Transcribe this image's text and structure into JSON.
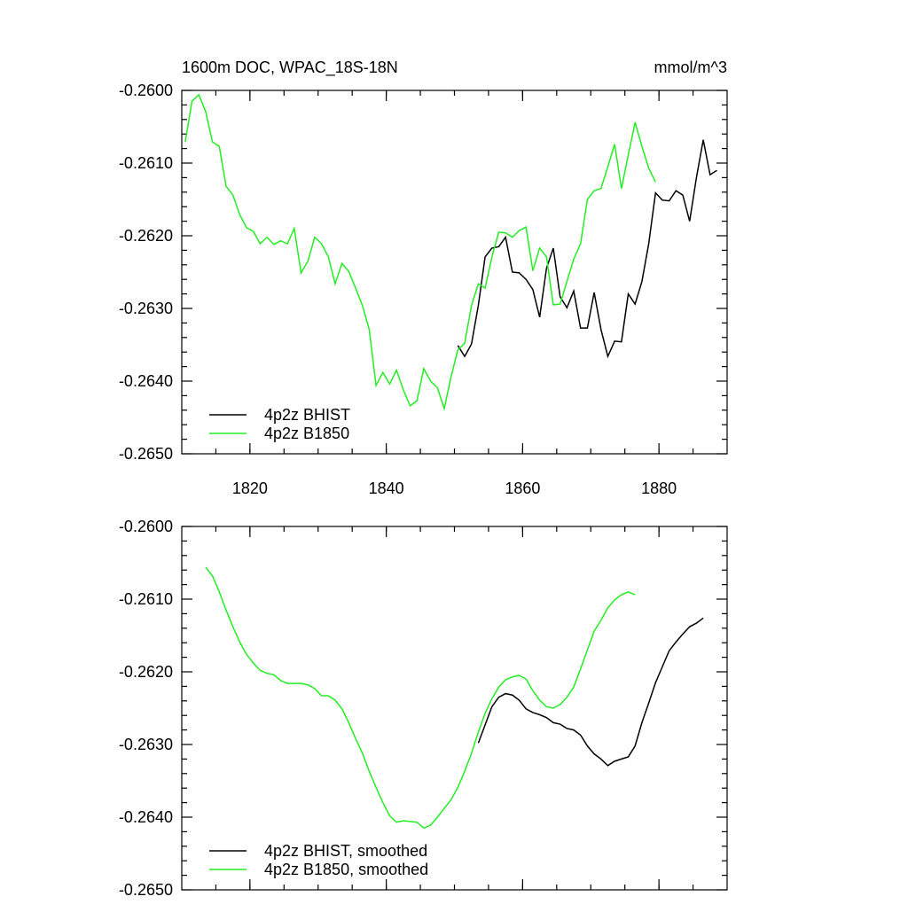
{
  "chart_data": [
    {
      "type": "line",
      "title": "1600m DOC, WPAC_18S-18N",
      "units": "mmol/m^3",
      "xlim": [
        1810,
        1890
      ],
      "xticks": [
        1820,
        1840,
        1860,
        1880
      ],
      "show_x_tick_labels": true,
      "ylim": [
        -0.265,
        -0.26
      ],
      "yticks": [
        {
          "value": -0.265,
          "label": "-0.2650"
        },
        {
          "value": -0.264,
          "label": "-0.2640"
        },
        {
          "value": -0.263,
          "label": "-0.2630"
        },
        {
          "value": -0.262,
          "label": "-0.2620"
        },
        {
          "value": -0.261,
          "label": "-0.2610"
        },
        {
          "value": -0.26,
          "label": "-0.2600"
        }
      ],
      "legend": "lower left",
      "series": [
        {
          "name": "4p2z BHIST",
          "color": "#000000",
          "x": [
            1850.5,
            1851.5,
            1852.5,
            1853.5,
            1854.5,
            1855.5,
            1856.5,
            1857.5,
            1858.5,
            1859.5,
            1860.5,
            1861.5,
            1862.5,
            1863.5,
            1864.5,
            1865.5,
            1866.5,
            1867.5,
            1868.5,
            1869.5,
            1870.5,
            1871.5,
            1872.5,
            1873.5,
            1874.5,
            1875.5,
            1876.5,
            1877.5,
            1878.5,
            1879.5,
            1880.5,
            1881.5,
            1882.5,
            1883.5,
            1884.5,
            1885.5,
            1886.5,
            1887.5,
            1888.5
          ],
          "values": [
            -0.26351,
            -0.26366,
            -0.26349,
            -0.26296,
            -0.26229,
            -0.26217,
            -0.26215,
            -0.26202,
            -0.2625,
            -0.26251,
            -0.2626,
            -0.26274,
            -0.26312,
            -0.26245,
            -0.26217,
            -0.26284,
            -0.26299,
            -0.26276,
            -0.26327,
            -0.26327,
            -0.26278,
            -0.26329,
            -0.26366,
            -0.26345,
            -0.26346,
            -0.2628,
            -0.26294,
            -0.26263,
            -0.26211,
            -0.26141,
            -0.26151,
            -0.26152,
            -0.26138,
            -0.26144,
            -0.2618,
            -0.2612,
            -0.26068,
            -0.26116,
            -0.2611
          ]
        },
        {
          "name": "4p2z B1850",
          "color": "#22ee22",
          "x": [
            1810.5,
            1811.5,
            1812.5,
            1813.5,
            1814.5,
            1815.5,
            1816.5,
            1817.5,
            1818.5,
            1819.5,
            1820.5,
            1821.5,
            1822.5,
            1823.5,
            1824.5,
            1825.5,
            1826.5,
            1827.5,
            1828.5,
            1829.5,
            1830.5,
            1831.5,
            1832.5,
            1833.5,
            1834.5,
            1835.5,
            1836.5,
            1837.5,
            1838.5,
            1839.5,
            1840.5,
            1841.5,
            1842.5,
            1843.5,
            1844.5,
            1845.5,
            1846.5,
            1847.5,
            1848.5,
            1849.5,
            1850.5,
            1851.5,
            1852.5,
            1853.5,
            1854.5,
            1855.5,
            1856.5,
            1857.5,
            1858.5,
            1859.5,
            1860.5,
            1861.5,
            1862.5,
            1863.5,
            1864.5,
            1865.5,
            1866.5,
            1867.5,
            1868.5,
            1869.5,
            1870.5,
            1871.5,
            1872.5,
            1873.5,
            1874.5,
            1875.5,
            1876.5,
            1877.5,
            1878.5,
            1879.5
          ],
          "values": [
            -0.26071,
            -0.26015,
            -0.26006,
            -0.26029,
            -0.26071,
            -0.26077,
            -0.26132,
            -0.26144,
            -0.26171,
            -0.26189,
            -0.26194,
            -0.26211,
            -0.26202,
            -0.26212,
            -0.26207,
            -0.26211,
            -0.2619,
            -0.26251,
            -0.26235,
            -0.26202,
            -0.26211,
            -0.26229,
            -0.26266,
            -0.26238,
            -0.26249,
            -0.26272,
            -0.26296,
            -0.26329,
            -0.26406,
            -0.26388,
            -0.26404,
            -0.26385,
            -0.26412,
            -0.26434,
            -0.26427,
            -0.26383,
            -0.264,
            -0.26409,
            -0.26438,
            -0.26394,
            -0.26357,
            -0.26348,
            -0.26296,
            -0.26266,
            -0.26272,
            -0.26229,
            -0.26195,
            -0.26196,
            -0.26202,
            -0.26193,
            -0.26188,
            -0.26248,
            -0.26217,
            -0.26229,
            -0.26295,
            -0.26294,
            -0.26263,
            -0.26232,
            -0.26211,
            -0.2615,
            -0.26138,
            -0.26135,
            -0.26105,
            -0.26074,
            -0.26135,
            -0.26089,
            -0.26044,
            -0.26077,
            -0.26107,
            -0.26126
          ]
        }
      ]
    },
    {
      "type": "line",
      "xlim": [
        1810,
        1890
      ],
      "xticks": [
        1820,
        1840,
        1860,
        1880
      ],
      "show_x_tick_labels": false,
      "ylim": [
        -0.265,
        -0.26
      ],
      "yticks": [
        {
          "value": -0.265,
          "label": "-0.2650"
        },
        {
          "value": -0.264,
          "label": "-0.2640"
        },
        {
          "value": -0.263,
          "label": "-0.2630"
        },
        {
          "value": -0.262,
          "label": "-0.2620"
        },
        {
          "value": -0.261,
          "label": "-0.2610"
        },
        {
          "value": -0.26,
          "label": "-0.2600"
        }
      ],
      "legend": "lower left",
      "series": [
        {
          "name": "4p2z BHIST, smoothed",
          "color": "#000000",
          "x": [
            1853.5,
            1854.5,
            1855.5,
            1856.5,
            1857.5,
            1858.5,
            1859.5,
            1860.5,
            1861.5,
            1862.5,
            1863.5,
            1864.5,
            1865.5,
            1866.5,
            1867.5,
            1868.5,
            1869.5,
            1870.5,
            1871.5,
            1872.5,
            1873.5,
            1874.5,
            1875.5,
            1876.5,
            1877.5,
            1878.5,
            1879.5,
            1880.5,
            1881.5,
            1882.5,
            1883.5,
            1884.5,
            1885.5,
            1886.5
          ],
          "values": [
            -0.26298,
            -0.26273,
            -0.26248,
            -0.26235,
            -0.2623,
            -0.26232,
            -0.26239,
            -0.26251,
            -0.26256,
            -0.26259,
            -0.26263,
            -0.2627,
            -0.26272,
            -0.26278,
            -0.2628,
            -0.26287,
            -0.26302,
            -0.26313,
            -0.2632,
            -0.26329,
            -0.26323,
            -0.2632,
            -0.26317,
            -0.26302,
            -0.2627,
            -0.26243,
            -0.26215,
            -0.26193,
            -0.26171,
            -0.26159,
            -0.26148,
            -0.26138,
            -0.26133,
            -0.26126
          ]
        },
        {
          "name": "4p2z B1850, smoothed",
          "color": "#22ee22",
          "x": [
            1813.5,
            1814.5,
            1815.5,
            1816.5,
            1817.5,
            1818.5,
            1819.5,
            1820.5,
            1821.5,
            1822.5,
            1823.5,
            1824.5,
            1825.5,
            1826.5,
            1827.5,
            1828.5,
            1829.5,
            1830.5,
            1831.5,
            1832.5,
            1833.5,
            1834.5,
            1835.5,
            1836.5,
            1837.5,
            1838.5,
            1839.5,
            1840.5,
            1841.5,
            1842.5,
            1843.5,
            1844.5,
            1845.5,
            1846.5,
            1847.5,
            1848.5,
            1849.5,
            1850.5,
            1851.5,
            1852.5,
            1853.5,
            1854.5,
            1855.5,
            1856.5,
            1857.5,
            1858.5,
            1859.5,
            1860.5,
            1861.5,
            1862.5,
            1863.5,
            1864.5,
            1865.5,
            1866.5,
            1867.5,
            1868.5,
            1869.5,
            1870.5,
            1871.5,
            1872.5,
            1873.5,
            1874.5,
            1875.5,
            1876.5
          ],
          "values": [
            -0.26056,
            -0.26068,
            -0.2609,
            -0.26115,
            -0.26138,
            -0.26159,
            -0.26176,
            -0.26188,
            -0.26198,
            -0.26202,
            -0.26204,
            -0.26212,
            -0.26216,
            -0.26216,
            -0.26216,
            -0.26218,
            -0.26223,
            -0.26233,
            -0.26233,
            -0.26239,
            -0.26251,
            -0.2627,
            -0.26292,
            -0.26312,
            -0.26337,
            -0.26359,
            -0.2638,
            -0.26398,
            -0.26407,
            -0.26405,
            -0.26406,
            -0.26407,
            -0.26415,
            -0.26411,
            -0.264,
            -0.26388,
            -0.26376,
            -0.26359,
            -0.26337,
            -0.26312,
            -0.26283,
            -0.26257,
            -0.26237,
            -0.26221,
            -0.26211,
            -0.26207,
            -0.26205,
            -0.2621,
            -0.26226,
            -0.26239,
            -0.26248,
            -0.2625,
            -0.26245,
            -0.26235,
            -0.26221,
            -0.26196,
            -0.2617,
            -0.26144,
            -0.26129,
            -0.26112,
            -0.26101,
            -0.26094,
            -0.2609,
            -0.26094
          ]
        }
      ]
    }
  ]
}
